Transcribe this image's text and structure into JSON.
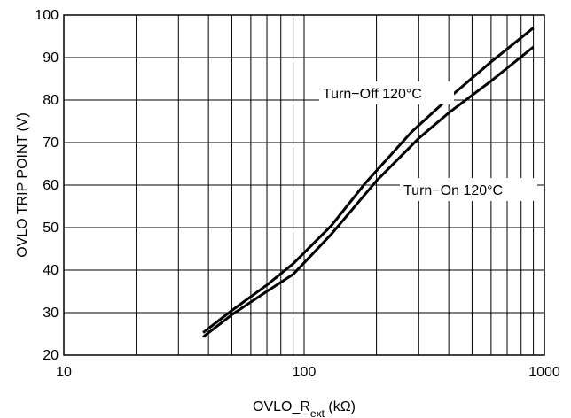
{
  "chart_data": {
    "type": "line",
    "title": "",
    "xlabel": "OVLO_R",
    "xlabel_subscript": "ext",
    "xlabel_unit": " (kΩ)",
    "ylabel": "OVLO TRIP POINT (V)",
    "xscale": "log",
    "xlim": [
      10,
      1000
    ],
    "ylim": [
      20,
      100
    ],
    "x_ticks": [
      10,
      100,
      1000
    ],
    "x_tick_labels": [
      "10",
      "100",
      "1000"
    ],
    "y_ticks": [
      20,
      30,
      40,
      50,
      60,
      70,
      80,
      90,
      100
    ],
    "y_tick_labels": [
      "20",
      "30",
      "40",
      "50",
      "60",
      "70",
      "80",
      "90",
      "100"
    ],
    "grid": true,
    "series": [
      {
        "name": "Turn−Off 120°C",
        "x": [
          38,
          50,
          70,
          90,
          130,
          180,
          280,
          400,
          600,
          900
        ],
        "values": [
          25.3,
          30.5,
          36.5,
          41.5,
          50.5,
          60.5,
          72.5,
          80.5,
          89.0,
          97.0
        ]
      },
      {
        "name": "Turn−On 120°C",
        "x": [
          38,
          50,
          70,
          90,
          130,
          200,
          300,
          400,
          600,
          900
        ],
        "values": [
          24.3,
          29.5,
          35.0,
          39.0,
          48.5,
          61.0,
          71.0,
          77.0,
          84.5,
          92.5
        ]
      }
    ],
    "annotations": [
      {
        "text": "Turn−Off 120°C",
        "series": 0
      },
      {
        "text": "Turn−On 120°C",
        "series": 1
      }
    ]
  }
}
